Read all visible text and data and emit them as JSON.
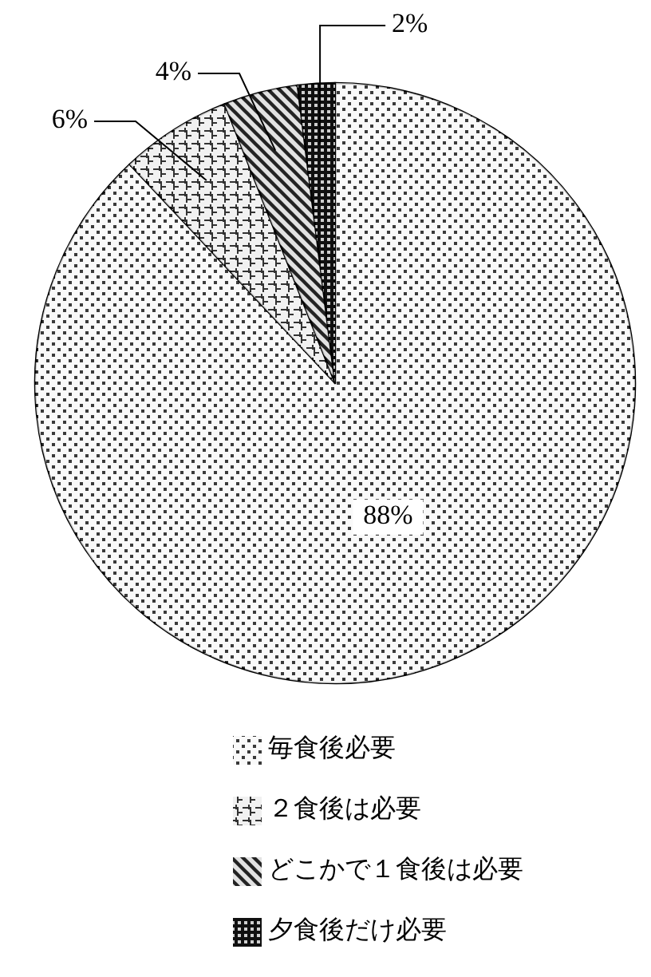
{
  "chart_data": {
    "type": "pie",
    "categories": [
      "毎食後必要",
      "２食後は必要",
      "どこかで１食後は必要",
      "夕食後だけ必要"
    ],
    "values": [
      88,
      6,
      4,
      2
    ],
    "value_labels": [
      "88%",
      "6%",
      "4%",
      "2%"
    ],
    "colors": [
      "#e8e8e8",
      "#c8c8c8",
      "#8c8c8c",
      "#404040"
    ],
    "legend": "bottom"
  }
}
